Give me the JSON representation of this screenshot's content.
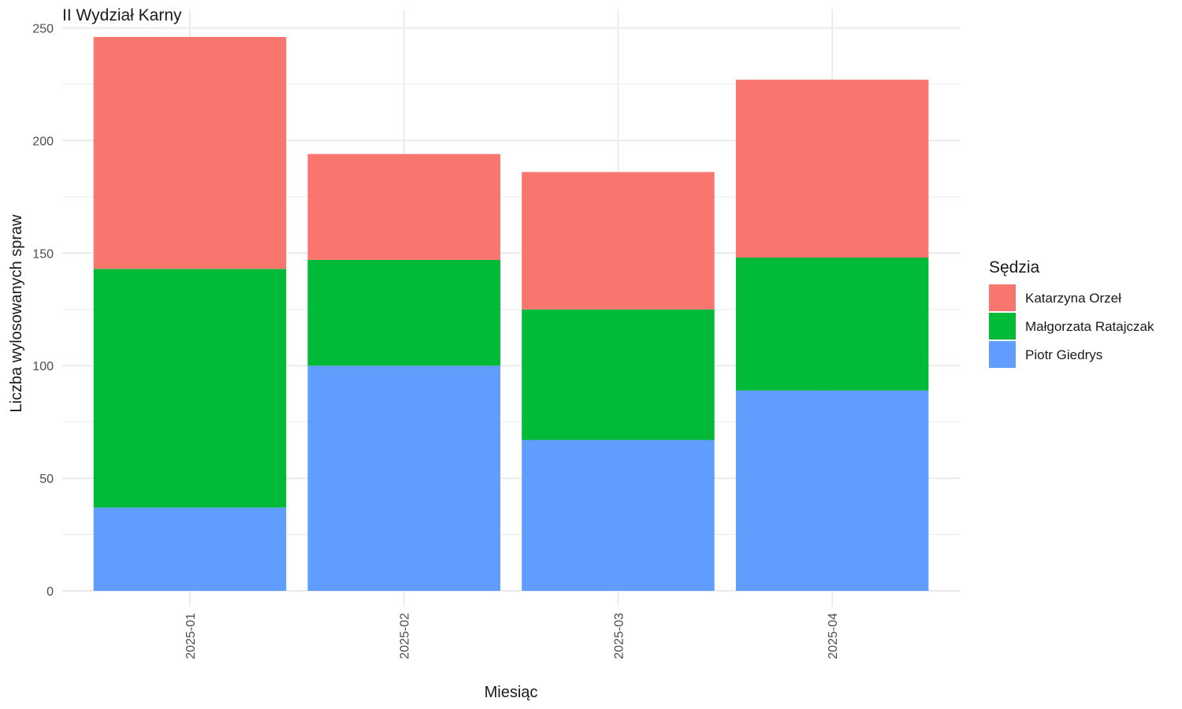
{
  "chart_data": {
    "type": "bar",
    "stacked": true,
    "title": "II Wydział Karny",
    "xlabel": "Miesiąc",
    "ylabel": "Liczba wylosowanych spraw",
    "categories": [
      "2025-01",
      "2025-02",
      "2025-03",
      "2025-04"
    ],
    "ylim": [
      0,
      250
    ],
    "yticks": [
      0,
      50,
      100,
      150,
      200,
      250
    ],
    "grid": true,
    "x_tick_rotation": "vertical",
    "legend": {
      "title": "Sędzia",
      "position": "right"
    },
    "series": [
      {
        "name": "Katarzyna Orzeł",
        "color": "#F8766D",
        "values": [
          103,
          47,
          61,
          79
        ]
      },
      {
        "name": "Małgorzata Ratajczak",
        "color": "#00BA38",
        "values": [
          106,
          47,
          58,
          59
        ]
      },
      {
        "name": "Piotr Giedrys",
        "color": "#619CFF",
        "values": [
          37,
          100,
          67,
          89
        ]
      }
    ]
  }
}
